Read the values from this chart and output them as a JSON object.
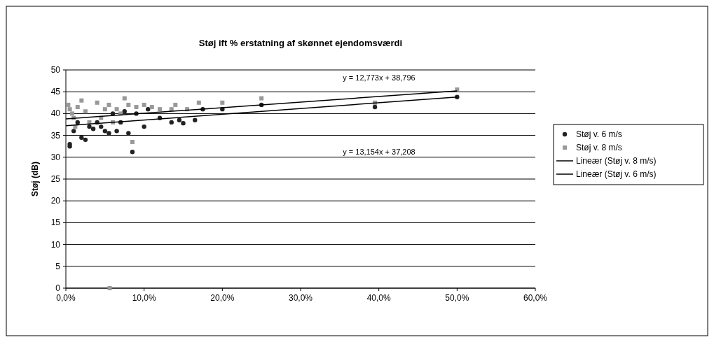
{
  "chart_data": {
    "type": "scatter",
    "title": "Støj ift % erstatning af skønnet ejendomsværdi",
    "ylabel": "Støj (dB)",
    "xlim": [
      0,
      0.6
    ],
    "xticks": [
      {
        "value": 0,
        "label": "0,0%"
      },
      {
        "value": 0.1,
        "label": "10,0%"
      },
      {
        "value": 0.2,
        "label": "20,0%"
      },
      {
        "value": 0.3,
        "label": "30,0%"
      },
      {
        "value": 0.4,
        "label": "40,0%"
      },
      {
        "value": 0.5,
        "label": "50,0%"
      },
      {
        "value": 0.6,
        "label": "60,0%"
      }
    ],
    "ylim": [
      0,
      50
    ],
    "yticks": [
      0,
      5,
      10,
      15,
      20,
      25,
      30,
      35,
      40,
      45,
      50
    ],
    "grid": "y",
    "legend": "right",
    "annotations": [
      "y = 12,773x + 38,796",
      "y = 13,154x + 37,208"
    ],
    "series": [
      {
        "name": "Støj v. 6 m/s",
        "marker": "circle",
        "color": "#222222",
        "x": [
          0.005,
          0.005,
          0.01,
          0.015,
          0.02,
          0.025,
          0.03,
          0.035,
          0.04,
          0.045,
          0.05,
          0.055,
          0.06,
          0.065,
          0.07,
          0.075,
          0.08,
          0.085,
          0.09,
          0.1,
          0.105,
          0.12,
          0.135,
          0.145,
          0.15,
          0.165,
          0.175,
          0.2,
          0.25,
          0.395,
          0.5
        ],
        "values": [
          33,
          32.5,
          36,
          38,
          34.5,
          34,
          37,
          36.5,
          38,
          37,
          36,
          35.5,
          40,
          36,
          38,
          40.5,
          35.5,
          31.2,
          40,
          37,
          41,
          39,
          38,
          38.5,
          37.8,
          38.5,
          41,
          41,
          42,
          41.5,
          43.8
        ]
      },
      {
        "name": "Støj v. 8 m/s",
        "marker": "square",
        "color": "#999999",
        "x": [
          0.003,
          0.005,
          0.008,
          0.01,
          0.012,
          0.015,
          0.02,
          0.025,
          0.03,
          0.04,
          0.045,
          0.05,
          0.055,
          0.056,
          0.06,
          0.065,
          0.07,
          0.075,
          0.08,
          0.085,
          0.09,
          0.1,
          0.11,
          0.12,
          0.135,
          0.14,
          0.155,
          0.17,
          0.2,
          0.25,
          0.395,
          0.5
        ],
        "values": [
          42,
          41,
          40,
          39,
          37,
          41.5,
          43,
          40.5,
          38,
          42.5,
          39,
          41,
          42,
          0,
          38,
          41,
          40,
          43.5,
          42,
          33.5,
          41.5,
          42,
          41.5,
          41,
          41,
          42,
          41,
          42.5,
          42.5,
          43.5,
          42.5,
          45.5
        ]
      },
      {
        "name": "Lineær (Støj v. 8 m/s)",
        "type": "line",
        "color": "#000000",
        "x": [
          0,
          0.5
        ],
        "values": [
          38.8,
          45.2
        ]
      },
      {
        "name": "Lineær (Støj v. 6 m/s)",
        "type": "line",
        "color": "#000000",
        "x": [
          0,
          0.5
        ],
        "values": [
          37.2,
          43.8
        ]
      }
    ]
  }
}
